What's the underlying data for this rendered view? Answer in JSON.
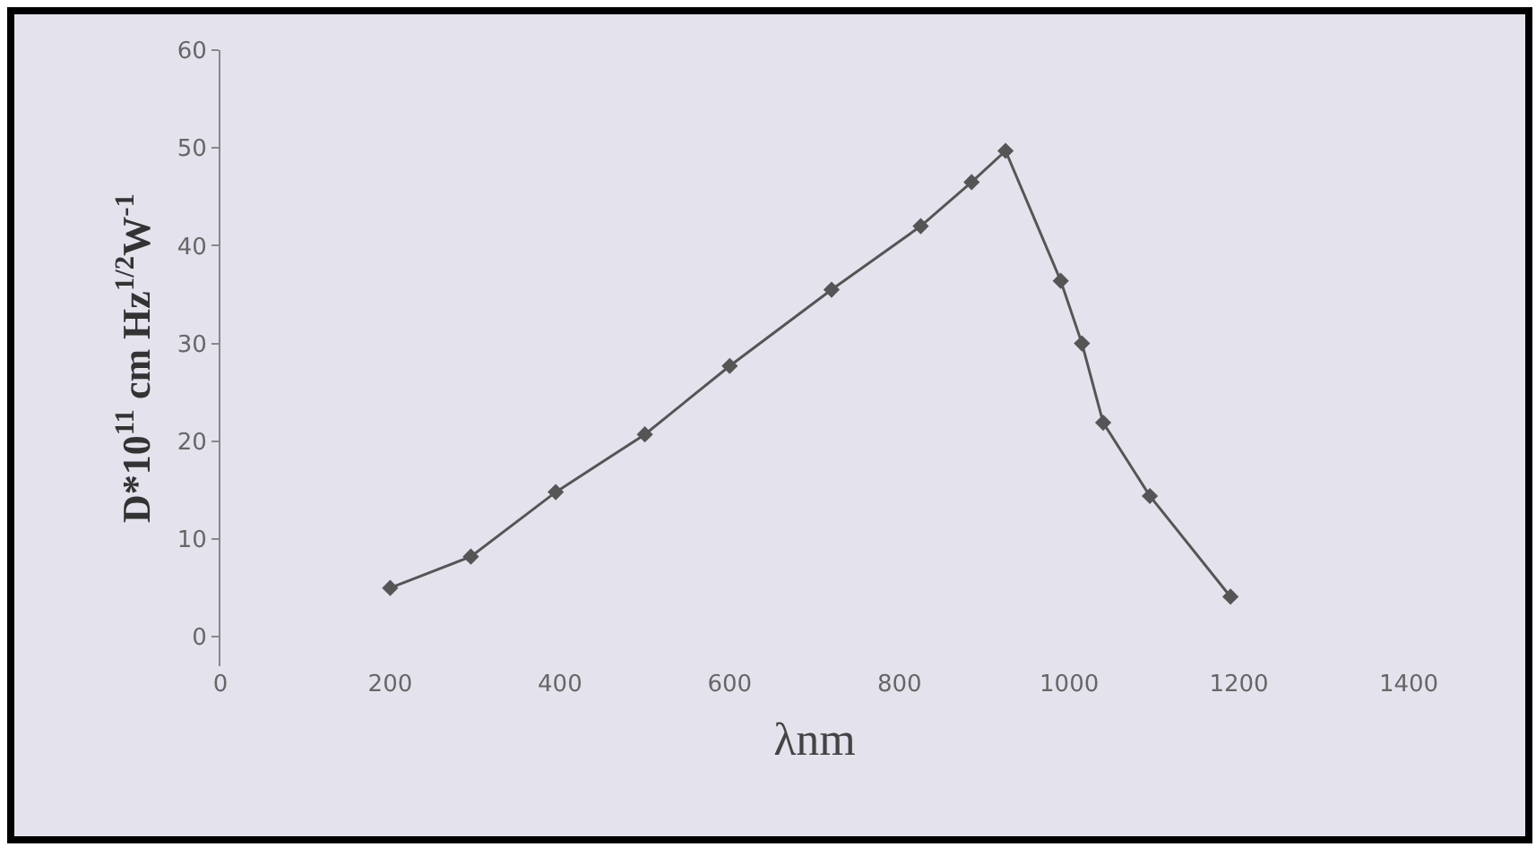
{
  "chart_data": {
    "type": "line",
    "xlabel": "λnm",
    "ylabel": "D*10$^{11}$ cm Hz$^{1/2}$W$^{-1}$",
    "x": [
      200,
      295,
      395,
      500,
      600,
      720,
      825,
      885,
      925,
      990,
      1015,
      1040,
      1095,
      1190
    ],
    "series": [
      {
        "color": "#555555",
        "values": [
          5,
          8.2,
          14.8,
          20.7,
          27.7,
          35.5,
          42,
          46.5,
          49.7,
          36.4,
          30,
          21.9,
          14.4,
          4.1
        ]
      }
    ],
    "xlim": [
      0,
      1400
    ],
    "xticks": [
      0,
      200,
      400,
      600,
      800,
      1000,
      1200,
      1400
    ],
    "ylim": [
      -3,
      60
    ],
    "yticks": [
      0,
      10,
      20,
      30,
      40,
      50,
      60
    ],
    "grid": false,
    "marker": "diamond",
    "line_style": "solid"
  }
}
